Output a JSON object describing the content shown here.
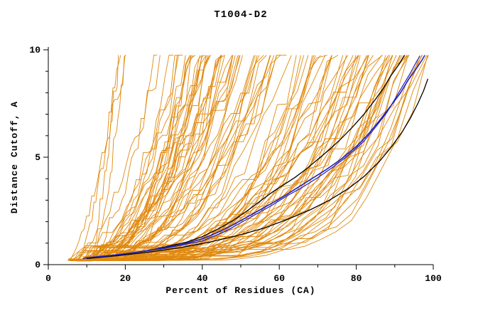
{
  "chart_data": {
    "type": "line",
    "title": "T1004-D2",
    "xlabel": "Percent of Residues (CA)",
    "ylabel": "Distance Cutoff, A",
    "xlim": [
      0,
      100
    ],
    "ylim": [
      0,
      10
    ],
    "x_major_ticks": [
      0,
      20,
      40,
      60,
      80,
      100
    ],
    "x_minor_ticks": [
      10,
      30,
      50,
      70,
      90
    ],
    "y_major_ticks": [
      0,
      5,
      10
    ],
    "y_minor_ticks": [
      1,
      2,
      3,
      4,
      6,
      7,
      8,
      9
    ],
    "grid": false,
    "legend": "none",
    "colors": {
      "background": "#FFFFFF",
      "axis": "#000000",
      "ensemble_orange": "#E0890E",
      "highlight_black": "#000000",
      "highlight_blue": "#2222BB"
    },
    "ensemble": {
      "name": "orange-model-accuracy-curves",
      "description": "Large bundle of ~110 orange cumulative model-accuracy curves rising from lower-left (x=5-12, y=0.2) to the top cutoff, end percent spread 18-100 with most ending 70-100",
      "count": 110,
      "seed": 1004,
      "x_start_range": [
        5,
        12
      ],
      "x_end_range": [
        18,
        100
      ],
      "y_start": 0.18,
      "y_top": 9.75
    },
    "highlighted_series": [
      {
        "name": "model-black-lower",
        "color_key": "highlight_black",
        "width": 1.3,
        "points": [
          [
            10,
            0.28
          ],
          [
            18,
            0.42
          ],
          [
            26,
            0.58
          ],
          [
            34,
            0.78
          ],
          [
            42,
            1.05
          ],
          [
            49,
            1.35
          ],
          [
            56,
            1.7
          ],
          [
            62,
            2.1
          ],
          [
            68,
            2.55
          ],
          [
            73,
            3.0
          ],
          [
            78,
            3.55
          ],
          [
            82,
            4.1
          ],
          [
            86,
            4.8
          ],
          [
            89,
            5.45
          ],
          [
            92,
            6.2
          ],
          [
            94,
            6.8
          ],
          [
            96,
            7.5
          ],
          [
            97.5,
            8.1
          ],
          [
            98.6,
            8.65
          ]
        ]
      },
      {
        "name": "model-black-upper",
        "color_key": "highlight_black",
        "width": 1.3,
        "points": [
          [
            9,
            0.3
          ],
          [
            14,
            0.38
          ],
          [
            20,
            0.5
          ],
          [
            26,
            0.65
          ],
          [
            31,
            0.85
          ],
          [
            36,
            1.05
          ],
          [
            40,
            1.3
          ],
          [
            44,
            1.65
          ],
          [
            48,
            2.05
          ],
          [
            52,
            2.55
          ],
          [
            55,
            2.95
          ],
          [
            58,
            3.35
          ],
          [
            61,
            3.7
          ],
          [
            64,
            4.05
          ],
          [
            67,
            4.45
          ],
          [
            70,
            4.9
          ],
          [
            73,
            5.35
          ],
          [
            76,
            5.85
          ],
          [
            79,
            6.4
          ],
          [
            82,
            7.0
          ],
          [
            85,
            7.7
          ],
          [
            87,
            8.2
          ],
          [
            89,
            8.8
          ],
          [
            91,
            9.3
          ],
          [
            92.5,
            9.75
          ]
        ]
      },
      {
        "name": "model-blue-secondary",
        "color_key": "highlight_blue",
        "width": 1.2,
        "points": [
          [
            9,
            0.3
          ],
          [
            20,
            0.5
          ],
          [
            30,
            0.75
          ],
          [
            40,
            1.1
          ],
          [
            46,
            1.55
          ],
          [
            50,
            1.95
          ],
          [
            54,
            2.35
          ],
          [
            58,
            2.75
          ],
          [
            62,
            3.2
          ],
          [
            66,
            3.6
          ],
          [
            70,
            4.05
          ],
          [
            74,
            4.55
          ],
          [
            78,
            5.1
          ],
          [
            82,
            5.75
          ],
          [
            85,
            6.4
          ],
          [
            88,
            7.1
          ],
          [
            90,
            7.7
          ],
          [
            92,
            8.3
          ],
          [
            94,
            8.9
          ],
          [
            95.5,
            9.4
          ],
          [
            96.5,
            9.7
          ]
        ]
      },
      {
        "name": "model-blue-primary",
        "color_key": "highlight_blue",
        "width": 1.6,
        "points": [
          [
            9,
            0.3
          ],
          [
            15,
            0.4
          ],
          [
            22,
            0.55
          ],
          [
            29,
            0.75
          ],
          [
            35,
            0.95
          ],
          [
            40,
            1.2
          ],
          [
            44,
            1.5
          ],
          [
            48,
            1.85
          ],
          [
            52,
            2.25
          ],
          [
            56,
            2.65
          ],
          [
            60,
            3.05
          ],
          [
            64,
            3.5
          ],
          [
            68,
            3.95
          ],
          [
            72,
            4.4
          ],
          [
            76,
            4.9
          ],
          [
            80,
            5.5
          ],
          [
            83,
            6.05
          ],
          [
            86,
            6.7
          ],
          [
            89,
            7.4
          ],
          [
            91.5,
            8.0
          ],
          [
            93.5,
            8.6
          ],
          [
            95.5,
            9.1
          ],
          [
            97,
            9.5
          ],
          [
            97.8,
            9.75
          ]
        ]
      }
    ]
  }
}
